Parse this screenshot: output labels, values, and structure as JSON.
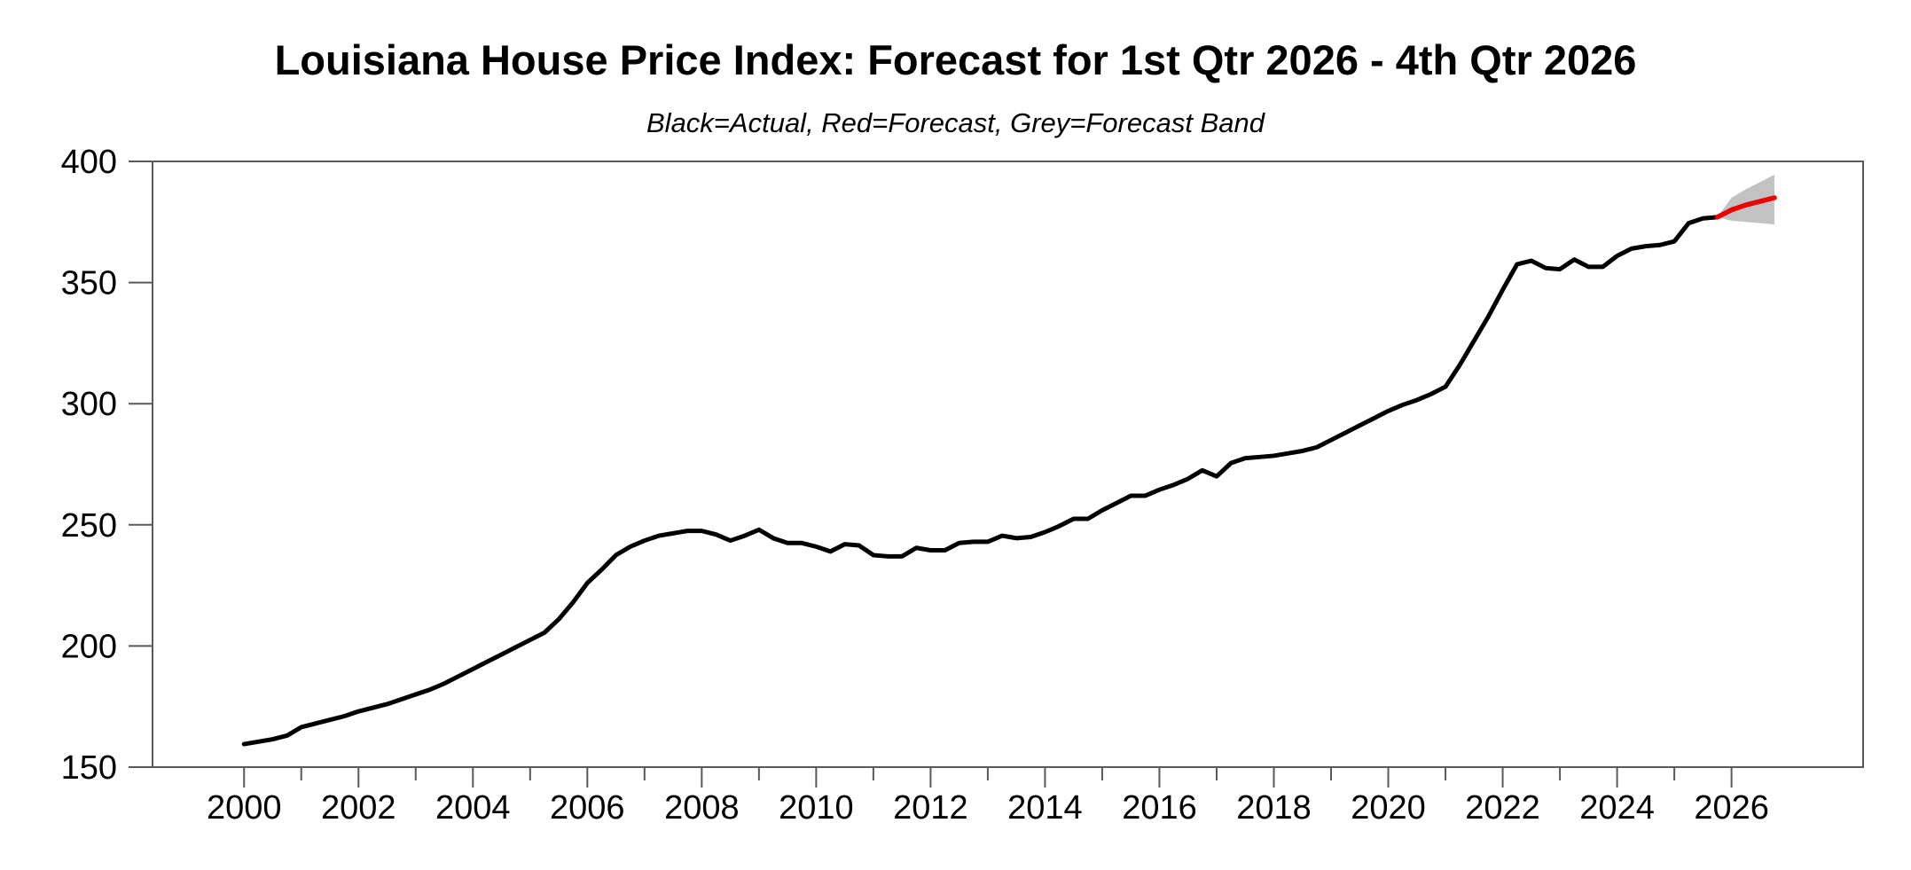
{
  "chart_data": {
    "type": "line",
    "title": "Louisiana House Price Index: Forecast for 1st Qtr 2026 - 4th Qtr 2026",
    "subtitle": "Black=Actual, Red=Forecast, Grey=Forecast Band",
    "grid": false,
    "legend_position": "none",
    "x_axis": {
      "range": [
        1998.4,
        2028.3
      ],
      "labeled_tick_years": [
        2000,
        2002,
        2004,
        2006,
        2008,
        2010,
        2012,
        2014,
        2016,
        2018,
        2020,
        2022,
        2024,
        2026
      ],
      "minor_tick_years": [
        2001,
        2003,
        2005,
        2007,
        2009,
        2011,
        2013,
        2015,
        2017,
        2019,
        2021,
        2023,
        2025
      ]
    },
    "y_axis": {
      "range": [
        150,
        400
      ],
      "ticks": [
        150,
        200,
        250,
        300,
        350,
        400
      ]
    },
    "series": [
      {
        "name": "Actual",
        "color": "#000000",
        "frequency": "quarterly",
        "start": "2000Q1",
        "values": [
          159.5,
          160.5,
          161.5,
          163,
          166.5,
          168,
          169.5,
          171,
          173,
          174.5,
          176,
          178,
          180,
          182,
          184.5,
          187.5,
          190.5,
          193.5,
          196.5,
          199.5,
          202.5,
          205.5,
          211,
          218,
          226,
          231.5,
          237.5,
          241,
          243.5,
          245.5,
          246.5,
          247.5,
          247.5,
          246,
          243.5,
          245.5,
          248,
          244.5,
          242.5,
          242.5,
          241,
          239,
          242,
          241.5,
          237.5,
          237,
          237,
          240.5,
          239.5,
          239.5,
          242.5,
          243,
          243,
          245.5,
          244.5,
          245,
          247,
          249.5,
          252.5,
          252.5,
          256,
          259,
          262,
          262,
          264.5,
          266.5,
          269,
          272.5,
          270,
          275.5,
          277.5,
          278,
          278.5,
          279.5,
          280.5,
          282,
          285,
          288,
          291,
          294,
          297,
          299.5,
          301.5,
          304,
          307,
          316,
          326,
          336,
          347,
          357.5,
          359,
          356,
          355.5,
          359.5,
          356.5,
          356.5,
          361,
          364,
          365,
          365.5,
          367,
          374.5,
          376.5,
          377
        ]
      },
      {
        "name": "Forecast",
        "color": "#ee0000",
        "frequency": "quarterly",
        "start": "2026Q1",
        "anchor": {
          "period": "2025Q4",
          "value": 377
        },
        "values": [
          380,
          382,
          383.5,
          385
        ]
      }
    ],
    "band": {
      "name": "Forecast Band",
      "color": "#c2c2c2",
      "frequency": "quarterly",
      "start": "2026Q1",
      "anchor": {
        "period": "2025Q4",
        "value": 377
      },
      "upper": [
        385,
        388.5,
        391.5,
        394.5
      ],
      "lower": [
        375.5,
        375,
        374.5,
        374
      ]
    },
    "frame_color": "#595959",
    "text_color": "#000000"
  }
}
